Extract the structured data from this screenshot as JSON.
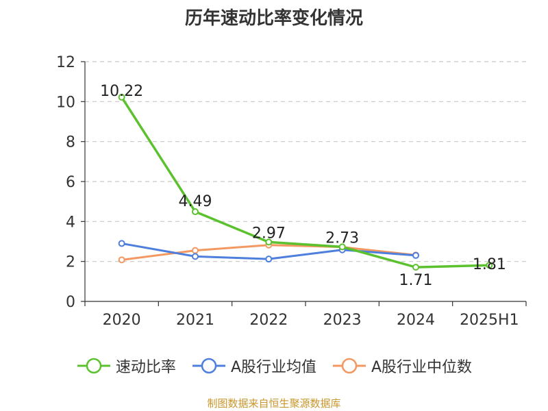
{
  "chart_data": {
    "type": "line",
    "title": "历年速动比率变化情况",
    "categories": [
      "2020",
      "2021",
      "2022",
      "2023",
      "2024",
      "2025H1"
    ],
    "ylim": [
      0,
      12
    ],
    "yticks": [
      0,
      2,
      4,
      6,
      8,
      10,
      12
    ],
    "grid": true,
    "legend_position": "bottom",
    "series": [
      {
        "name": "速动比率",
        "color": "#5cc12e",
        "values": [
          10.22,
          4.49,
          2.97,
          2.73,
          1.71,
          1.81
        ],
        "labels": [
          "10.22",
          "4.49",
          "2.97",
          "2.73",
          "1.71",
          "1.81"
        ]
      },
      {
        "name": "A股行业均值",
        "color": "#4e7fdc",
        "values": [
          2.9,
          2.25,
          2.12,
          2.58,
          2.3,
          null
        ]
      },
      {
        "name": "A股行业中位数",
        "color": "#f39860",
        "values": [
          2.08,
          2.55,
          2.82,
          2.72,
          2.32,
          null
        ]
      }
    ],
    "source": "制图数据来自恒生聚源数据库"
  }
}
